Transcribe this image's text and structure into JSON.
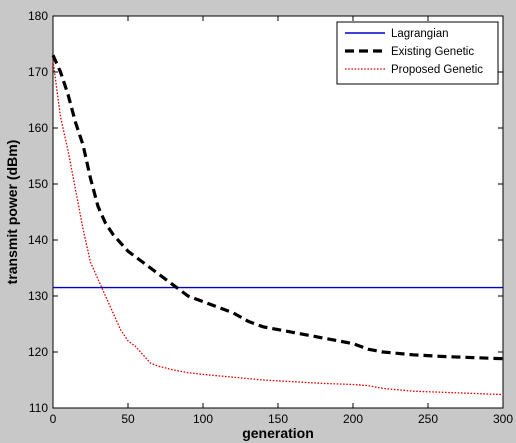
{
  "chart_data": {
    "type": "line",
    "xlabel": "generation",
    "ylabel": "transmit power (dBm)",
    "xlim": [
      0,
      300
    ],
    "ylim": [
      110,
      180
    ],
    "xticks": [
      0,
      50,
      100,
      150,
      200,
      250,
      300
    ],
    "yticks": [
      110,
      120,
      130,
      140,
      150,
      160,
      170,
      180
    ],
    "grid": false,
    "legend_position": "top-right",
    "series": [
      {
        "name": "Lagrangian",
        "color": "#0000cc",
        "style": "solid",
        "x": [
          0,
          300
        ],
        "y": [
          131.5,
          131.5
        ]
      },
      {
        "name": "Existing Genetic",
        "color": "#000000",
        "style": "dashed",
        "x": [
          0,
          5,
          10,
          15,
          20,
          25,
          30,
          35,
          40,
          50,
          60,
          70,
          80,
          90,
          100,
          110,
          120,
          130,
          140,
          150,
          160,
          170,
          180,
          190,
          200,
          210,
          220,
          240,
          260,
          280,
          300
        ],
        "y": [
          173,
          170,
          166,
          161,
          157,
          151,
          146,
          143,
          141,
          138,
          136,
          134,
          132,
          130,
          129,
          128,
          127,
          125.5,
          124.5,
          124,
          123.5,
          123,
          122.5,
          122,
          121.5,
          120.5,
          120,
          119.5,
          119.2,
          119,
          118.8
        ]
      },
      {
        "name": "Proposed Genetic",
        "color": "#e00000",
        "style": "dotted",
        "x": [
          0,
          5,
          10,
          15,
          20,
          25,
          30,
          35,
          40,
          45,
          50,
          55,
          60,
          65,
          70,
          80,
          90,
          100,
          120,
          140,
          160,
          180,
          200,
          210,
          220,
          240,
          260,
          280,
          300
        ],
        "y": [
          172,
          162,
          156,
          149,
          142,
          136,
          133,
          130,
          127,
          124,
          122,
          121,
          119.5,
          118,
          117.5,
          116.8,
          116.3,
          116,
          115.5,
          115,
          114.7,
          114.4,
          114.2,
          114,
          113.5,
          113,
          112.8,
          112.6,
          112.4
        ]
      }
    ]
  }
}
